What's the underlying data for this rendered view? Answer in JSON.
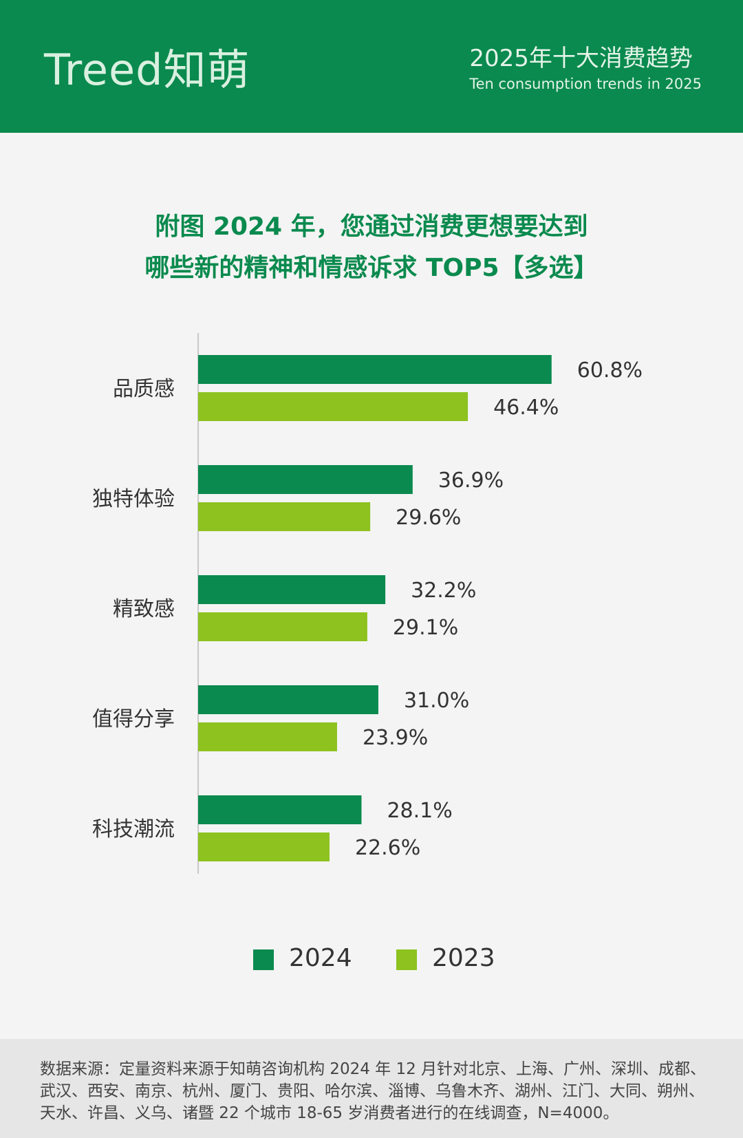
{
  "header": {
    "logo": "Treed知萌",
    "title": "2025年十大消费趋势",
    "subtitle": "Ten consumption trends in 2025"
  },
  "chart_title": {
    "line1": "附图 2024 年，您通过消费更想要达到",
    "line2": "哪些新的精神和情感诉求 TOP5【多选】"
  },
  "colors": {
    "brand": "#0a8a4e",
    "s2024": "#0a8a4e",
    "s2023": "#8dc21f"
  },
  "chart_data": {
    "type": "bar",
    "orientation": "horizontal",
    "categories": [
      "品质感",
      "独特体验",
      "精致感",
      "值得分享",
      "科技潮流"
    ],
    "series": [
      {
        "name": "2024",
        "values": [
          60.8,
          36.9,
          32.2,
          31.0,
          28.1
        ],
        "labels": [
          "60.8%",
          "36.9%",
          "32.2%",
          "31.0%",
          "28.1%"
        ]
      },
      {
        "name": "2023",
        "values": [
          46.4,
          29.6,
          29.1,
          23.9,
          22.6
        ],
        "labels": [
          "46.4%",
          "29.6%",
          "29.1%",
          "23.9%",
          "22.6%"
        ]
      }
    ],
    "legend_position": "bottom-center"
  },
  "footer": {
    "source": "数据来源：定量资料来源于知萌咨询机构 2024 年 12 月针对北京、上海、广州、深圳、成都、武汉、西安、南京、杭州、厦门、贵阳、哈尔滨、淄博、乌鲁木齐、湖州、江门、大同、朔州、天水、许昌、义乌、诸暨 22 个城市 18-65 岁消费者进行的在线调查，N=4000。"
  }
}
